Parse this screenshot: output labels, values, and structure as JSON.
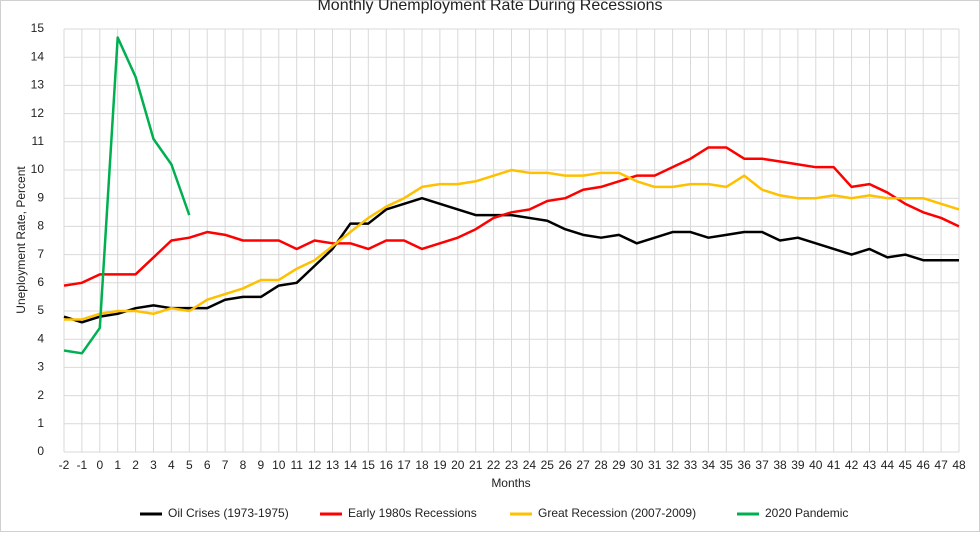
{
  "chart_data": {
    "type": "line",
    "title": "Monthly Unemployment Rate During Recessions",
    "x_label": "Months",
    "y_label": "Uneployment Rate, Percent",
    "x": [
      -2,
      -1,
      0,
      1,
      2,
      3,
      4,
      5,
      6,
      7,
      8,
      9,
      10,
      11,
      12,
      13,
      14,
      15,
      16,
      17,
      18,
      19,
      20,
      21,
      22,
      23,
      24,
      25,
      26,
      27,
      28,
      29,
      30,
      31,
      32,
      33,
      34,
      35,
      36,
      37,
      38,
      39,
      40,
      41,
      42,
      43,
      44,
      45,
      46,
      47,
      48
    ],
    "xlim": [
      -2,
      48
    ],
    "xticks": [
      -2,
      -1,
      0,
      1,
      2,
      3,
      4,
      5,
      6,
      7,
      8,
      9,
      10,
      11,
      12,
      13,
      14,
      15,
      16,
      17,
      18,
      19,
      20,
      21,
      22,
      23,
      24,
      25,
      26,
      27,
      28,
      29,
      30,
      31,
      32,
      33,
      34,
      35,
      36,
      37,
      38,
      39,
      40,
      41,
      42,
      43,
      44,
      45,
      46,
      47,
      48
    ],
    "ylim": [
      0,
      15
    ],
    "yticks": [
      0,
      1,
      2,
      3,
      4,
      5,
      6,
      7,
      8,
      9,
      10,
      11,
      12,
      13,
      14,
      15
    ],
    "grid": true,
    "legend": "bottom",
    "series": [
      {
        "name": "Oil Crises (1973-1975)",
        "color": "#000000",
        "values": [
          4.8,
          4.6,
          4.8,
          4.9,
          5.1,
          5.2,
          5.1,
          5.1,
          5.1,
          5.4,
          5.5,
          5.5,
          5.9,
          6.0,
          6.6,
          7.2,
          8.1,
          8.1,
          8.6,
          8.8,
          9.0,
          8.8,
          8.6,
          8.4,
          8.4,
          8.4,
          8.3,
          8.2,
          7.9,
          7.7,
          7.6,
          7.7,
          7.4,
          7.6,
          7.8,
          7.8,
          7.6,
          7.7,
          7.8,
          7.8,
          7.5,
          7.6,
          7.4,
          7.2,
          7.0,
          7.2,
          6.9,
          7.0,
          6.8,
          6.8,
          6.8
        ]
      },
      {
        "name": "Early 1980s Recessions",
        "color": "#ff0000",
        "values": [
          5.9,
          6.0,
          6.3,
          6.3,
          6.3,
          6.9,
          7.5,
          7.6,
          7.8,
          7.7,
          7.5,
          7.5,
          7.5,
          7.2,
          7.5,
          7.4,
          7.4,
          7.2,
          7.5,
          7.5,
          7.2,
          7.4,
          7.6,
          7.9,
          8.3,
          8.5,
          8.6,
          8.9,
          9.0,
          9.3,
          9.4,
          9.6,
          9.8,
          9.8,
          10.1,
          10.4,
          10.8,
          10.8,
          10.4,
          10.4,
          10.3,
          10.2,
          10.1,
          10.1,
          9.4,
          9.5,
          9.2,
          8.8,
          8.5,
          8.3,
          8.0
        ]
      },
      {
        "name": "Great Recession (2007-2009)",
        "color": "#ffc000",
        "values": [
          4.7,
          4.7,
          4.9,
          5.0,
          5.0,
          4.9,
          5.1,
          5.0,
          5.4,
          5.6,
          5.8,
          6.1,
          6.1,
          6.5,
          6.8,
          7.3,
          7.8,
          8.3,
          8.7,
          9.0,
          9.4,
          9.5,
          9.5,
          9.6,
          9.8,
          10.0,
          9.9,
          9.9,
          9.8,
          9.8,
          9.9,
          9.9,
          9.6,
          9.4,
          9.4,
          9.5,
          9.5,
          9.4,
          9.8,
          9.3,
          9.1,
          9.0,
          9.0,
          9.1,
          9.0,
          9.1,
          9.0,
          9.0,
          9.0,
          8.8,
          8.6
        ]
      },
      {
        "name": "2020 Pandemic",
        "color": "#00b050",
        "values": [
          3.6,
          3.5,
          4.4,
          14.7,
          13.3,
          11.1,
          10.2,
          8.4,
          null,
          null,
          null,
          null,
          null,
          null,
          null,
          null,
          null,
          null,
          null,
          null,
          null,
          null,
          null,
          null,
          null,
          null,
          null,
          null,
          null,
          null,
          null,
          null,
          null,
          null,
          null,
          null,
          null,
          null,
          null,
          null,
          null,
          null,
          null,
          null,
          null,
          null,
          null,
          null,
          null,
          null,
          null
        ]
      }
    ]
  }
}
